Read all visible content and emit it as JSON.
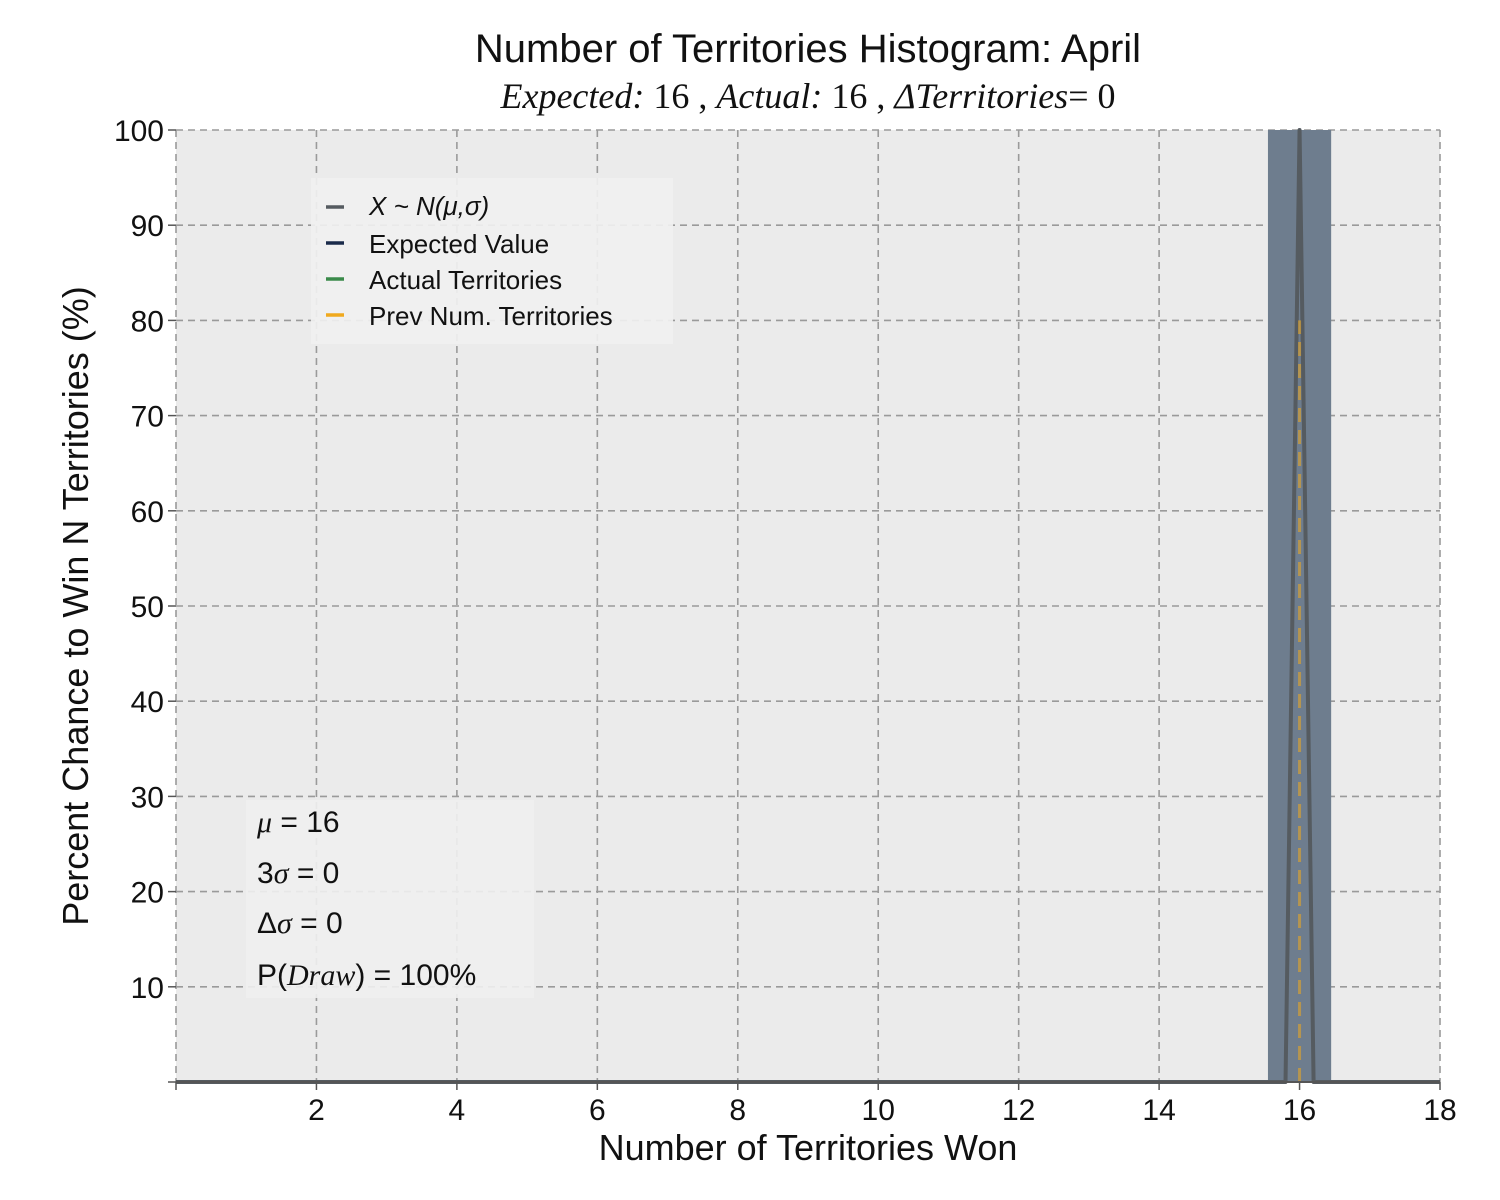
{
  "chart_data": {
    "type": "line",
    "title": "Number of Territories Histogram: April",
    "subtitle": {
      "expected_label": "Expected:",
      "expected_value": "16",
      "actual_label": "Actual:",
      "actual_value": "16",
      "delta_label": "ΔTerritories",
      "delta_value": "= 0"
    },
    "xlabel": "Number of Territories Won",
    "ylabel": "Percent Chance to Win N Territories (%)",
    "xlim": [
      0,
      18
    ],
    "ylim": [
      0,
      100
    ],
    "xticks": [
      2,
      4,
      6,
      8,
      10,
      12,
      14,
      16,
      18
    ],
    "yticks": [
      10,
      20,
      30,
      40,
      50,
      60,
      70,
      80,
      90,
      100
    ],
    "grid": true,
    "legend_position": "upper-left",
    "background_color": "#ebebeb",
    "band": {
      "x0": 15.55,
      "x1": 16.45,
      "color": "#6e7d8e"
    },
    "series": [
      {
        "name": "X ~ N(μ,σ)",
        "color": "#555b60",
        "style": "solid",
        "x": [
          0,
          15.8,
          16,
          16.2,
          18
        ],
        "y": [
          0,
          0,
          100,
          0,
          0
        ]
      },
      {
        "name": "Expected Value",
        "color": "#1a2a4a",
        "style": "solid",
        "x": [
          16,
          16
        ],
        "y": [
          0,
          100
        ]
      },
      {
        "name": "Actual Territories",
        "color": "#3a8a4a",
        "style": "solid",
        "x": [
          16,
          16
        ],
        "y": [
          0,
          100
        ]
      },
      {
        "name": "Prev Num. Territories",
        "color": "#f0a91e",
        "style": "dashed",
        "x": [
          16,
          16
        ],
        "y": [
          0,
          80
        ]
      }
    ],
    "stats": [
      {
        "symbol": "μ",
        "text": " = 16"
      },
      {
        "prefix": "3",
        "symbol": "σ",
        "text": " = 0"
      },
      {
        "prefix": "Δ",
        "symbol": "σ",
        "text": " = 0"
      },
      {
        "prefix": "P(",
        "symbol": "Draw",
        "text": ") = 100%"
      }
    ]
  }
}
